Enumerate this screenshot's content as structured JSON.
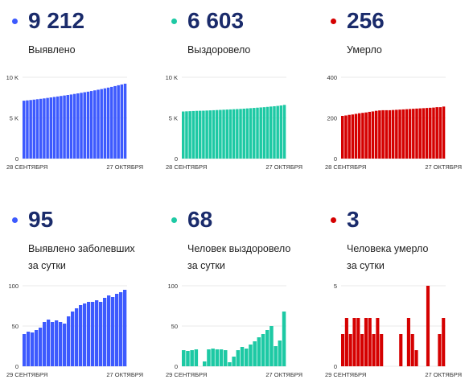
{
  "cards": [
    {
      "value": "9 212",
      "label": [
        "Выявлено"
      ],
      "color": "#3d5afe",
      "chart_data": {
        "type": "bar",
        "yticks": [
          "10 K",
          "5 K",
          "0"
        ],
        "ylim": [
          0,
          10000
        ],
        "x_start": "28 СЕНТЯБРЯ",
        "x_end": "27 ОКТЯБРЯ",
        "values": [
          7120,
          7160,
          7200,
          7250,
          7300,
          7350,
          7400,
          7460,
          7520,
          7580,
          7640,
          7700,
          7760,
          7820,
          7880,
          7950,
          8020,
          8090,
          8160,
          8230,
          8310,
          8390,
          8470,
          8550,
          8640,
          8730,
          8820,
          8920,
          9020,
          9117,
          9212
        ]
      }
    },
    {
      "value": "6 603",
      "label": [
        "Выздоровело"
      ],
      "color": "#1dc9a4",
      "chart_data": {
        "type": "bar",
        "yticks": [
          "10 K",
          "5 K",
          "0"
        ],
        "ylim": [
          0,
          10000
        ],
        "x_start": "28 СЕНТЯБРЯ",
        "x_end": "27 ОКТЯБРЯ",
        "values": [
          5790,
          5810,
          5830,
          5850,
          5870,
          5880,
          5890,
          5910,
          5930,
          5950,
          5970,
          5990,
          6010,
          6030,
          6050,
          6070,
          6090,
          6110,
          6140,
          6170,
          6200,
          6230,
          6260,
          6290,
          6320,
          6360,
          6400,
          6440,
          6480,
          6535,
          6603
        ]
      }
    },
    {
      "value": "256",
      "label": [
        "Умерло"
      ],
      "color": "#d50000",
      "chart_data": {
        "type": "bar",
        "yticks": [
          "400",
          "200",
          "0"
        ],
        "ylim": [
          0,
          400
        ],
        "x_start": "28 СЕНТЯБРЯ",
        "x_end": "27 ОКТЯБРЯ",
        "values": [
          210,
          212,
          215,
          217,
          220,
          223,
          225,
          227,
          230,
          232,
          235,
          237,
          238,
          238,
          238,
          239,
          240,
          241,
          242,
          243,
          244,
          245,
          246,
          247,
          248,
          249,
          250,
          251,
          253,
          253,
          256
        ]
      }
    },
    {
      "value": "95",
      "label": [
        "Выявлено заболевших",
        "за сутки"
      ],
      "color": "#3d5afe",
      "chart_data": {
        "type": "bar",
        "yticks": [
          "100",
          "50",
          "0"
        ],
        "ylim": [
          0,
          100
        ],
        "x_start": "29 СЕНТЯБРЯ",
        "x_end": "27 ОКТЯБРЯ",
        "values": [
          40,
          43,
          42,
          45,
          48,
          55,
          58,
          55,
          57,
          55,
          53,
          62,
          68,
          72,
          76,
          78,
          80,
          80,
          82,
          80,
          85,
          88,
          86,
          90,
          92,
          95
        ]
      }
    },
    {
      "value": "68",
      "label": [
        "Человек выздоровело",
        "за сутки"
      ],
      "color": "#1dc9a4",
      "chart_data": {
        "type": "bar",
        "yticks": [
          "100",
          "50",
          "0"
        ],
        "ylim": [
          0,
          100
        ],
        "x_start": "29 СЕНТЯБРЯ",
        "x_end": "27 ОКТЯБРЯ",
        "values": [
          20,
          19,
          20,
          21,
          0,
          6,
          21,
          22,
          21,
          21,
          20,
          5,
          12,
          20,
          24,
          22,
          27,
          31,
          36,
          40,
          45,
          50,
          25,
          32,
          68
        ]
      }
    },
    {
      "value": "3",
      "label": [
        "Человека умерло",
        "за сутки"
      ],
      "color": "#d50000",
      "chart_data": {
        "type": "bar",
        "yticks": [
          "5",
          "",
          "0"
        ],
        "ylim": [
          0,
          5
        ],
        "x_start": "29 СЕНТЯБРЯ",
        "x_end": "27 ОКТЯБРЯ",
        "values": [
          2,
          3,
          2,
          3,
          3,
          2,
          3,
          3,
          2,
          3,
          2,
          0,
          0,
          0,
          0,
          2,
          0,
          3,
          2,
          1,
          0,
          0,
          5,
          0,
          0,
          2,
          3
        ]
      }
    }
  ]
}
